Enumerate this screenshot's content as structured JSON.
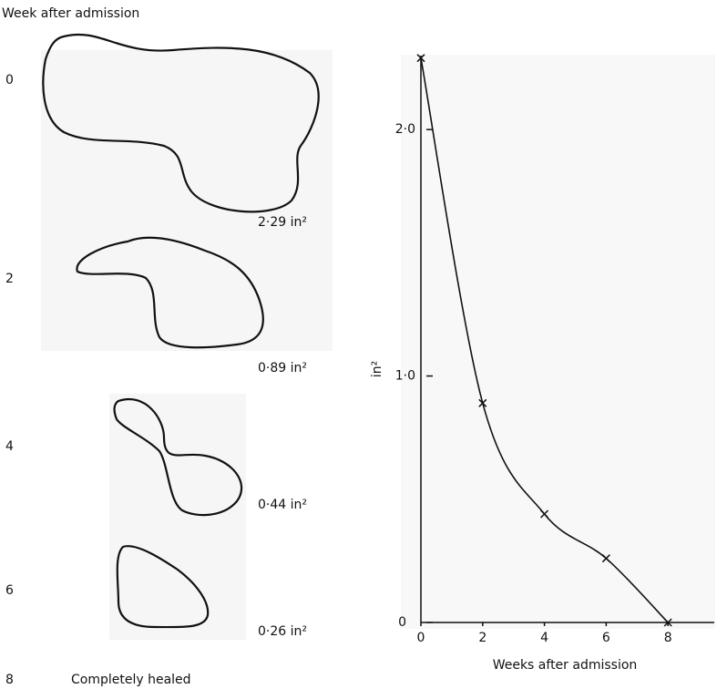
{
  "figure": {
    "header": "Week after admission",
    "outlines": [
      {
        "week": "0",
        "area": "2·29 in²"
      },
      {
        "week": "2",
        "area": "0·89 in²"
      },
      {
        "week": "4",
        "area": "0·44 in²"
      },
      {
        "week": "6",
        "area": "0·26 in²"
      }
    ],
    "last": {
      "week": "8",
      "note": "Completely healed"
    }
  },
  "chart_data": {
    "type": "line",
    "x_label": "Weeks after admission",
    "y_label": "in²",
    "x": [
      0,
      2,
      4,
      6,
      8
    ],
    "series": [
      {
        "color": "#111111",
        "values": [
          2.29,
          0.89,
          0.44,
          0.26,
          0
        ]
      }
    ],
    "xlim": [
      0,
      9.5
    ],
    "ylim": [
      0,
      2.3
    ],
    "xticks": [
      0,
      2,
      4,
      6,
      8
    ],
    "yticks": [
      0,
      {
        "value": 1,
        "label": "1·0"
      },
      {
        "value": 2,
        "label": "2·0"
      }
    ],
    "grid": false
  }
}
